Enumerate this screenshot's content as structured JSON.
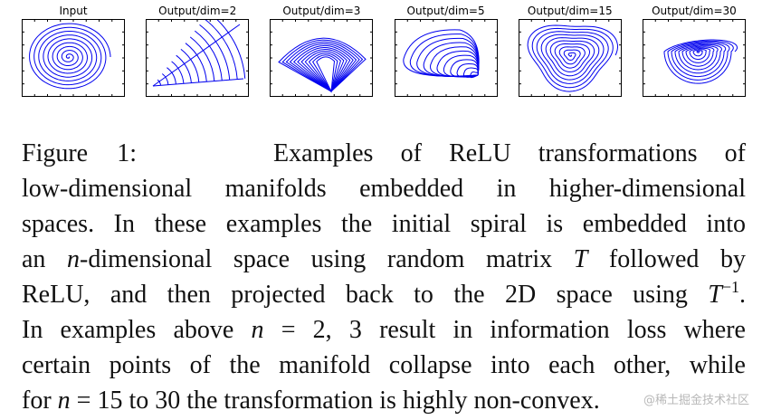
{
  "figure": {
    "panels": [
      {
        "title": "Input",
        "kind": "spiral"
      },
      {
        "title": "Output/dim=2",
        "kind": "fan"
      },
      {
        "title": "Output/dim=3",
        "kind": "squash"
      },
      {
        "title": "Output/dim=5",
        "kind": "wedge"
      },
      {
        "title": "Output/dim=15",
        "kind": "triangle"
      },
      {
        "title": "Output/dim=30",
        "kind": "shell"
      }
    ],
    "line_color": "#0000ee"
  },
  "caption": {
    "l1_label": "Figure 1:",
    "l1_text": "Examples of ReLU transformations of",
    "l2": "low-dimensional manifolds embedded in higher-dimensional",
    "l3": "spaces.  In these examples the initial spiral is embedded into",
    "l4_a": "an ",
    "l4_n": "n",
    "l4_b": "-dimensional space using random matrix ",
    "l4_T": "T",
    "l4_c": " followed by",
    "l5_a": "ReLU, and then projected back to the 2D space using ",
    "l5_T": "T",
    "l5_sup": "−1",
    "l5_c": ".",
    "l6_a": "In examples above ",
    "l6_n": "n",
    "l6_b": " = 2, 3 result in information loss where",
    "l7": "certain points of the manifold collapse into each other, while",
    "l8_a": "for ",
    "l8_n": "n",
    "l8_b": " = 15 to 30 the transformation is highly non-convex."
  },
  "watermark": "@稀土掘金技术社区"
}
